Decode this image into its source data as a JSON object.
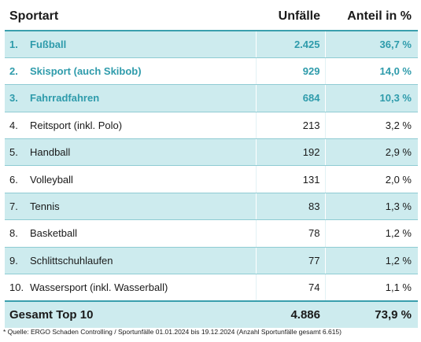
{
  "header": {
    "sport": "Sportart",
    "unfaelle": "Unfälle",
    "anteil": "Anteil in %"
  },
  "rows": [
    {
      "rank": "1.",
      "name": "Fußball",
      "count": "2.425",
      "share": "36,7 %"
    },
    {
      "rank": "2.",
      "name": "Skisport (auch Skibob)",
      "count": "929",
      "share": "14,0 %"
    },
    {
      "rank": "3.",
      "name": "Fahrradfahren",
      "count": "684",
      "share": "10,3 %"
    },
    {
      "rank": "4.",
      "name": "Reitsport (inkl. Polo)",
      "count": "213",
      "share": "3,2 %"
    },
    {
      "rank": "5.",
      "name": "Handball",
      "count": "192",
      "share": "2,9 %"
    },
    {
      "rank": "6.",
      "name": "Volleyball",
      "count": "131",
      "share": "2,0 %"
    },
    {
      "rank": "7.",
      "name": "Tennis",
      "count": "83",
      "share": "1,3 %"
    },
    {
      "rank": "8.",
      "name": "Basketball",
      "count": "78",
      "share": "1,2 %"
    },
    {
      "rank": "9.",
      "name": "Schlittschuhlaufen",
      "count": "77",
      "share": "1,2 %"
    },
    {
      "rank": "10.",
      "name": "Wassersport (inkl. Wasserball)",
      "count": "74",
      "share": "1,1 %"
    }
  ],
  "total": {
    "label": "Gesamt Top 10",
    "count": "4.886",
    "share": "73,9 %"
  },
  "source": "* Quelle: ERGO Schaden Controlling / Sportunfälle 01.01.2024 bis 19.12.2024 (Anzahl Sportunfälle gesamt 6.615)",
  "colors": {
    "accent": "#2e9bab",
    "stripe": "#cdebee"
  }
}
